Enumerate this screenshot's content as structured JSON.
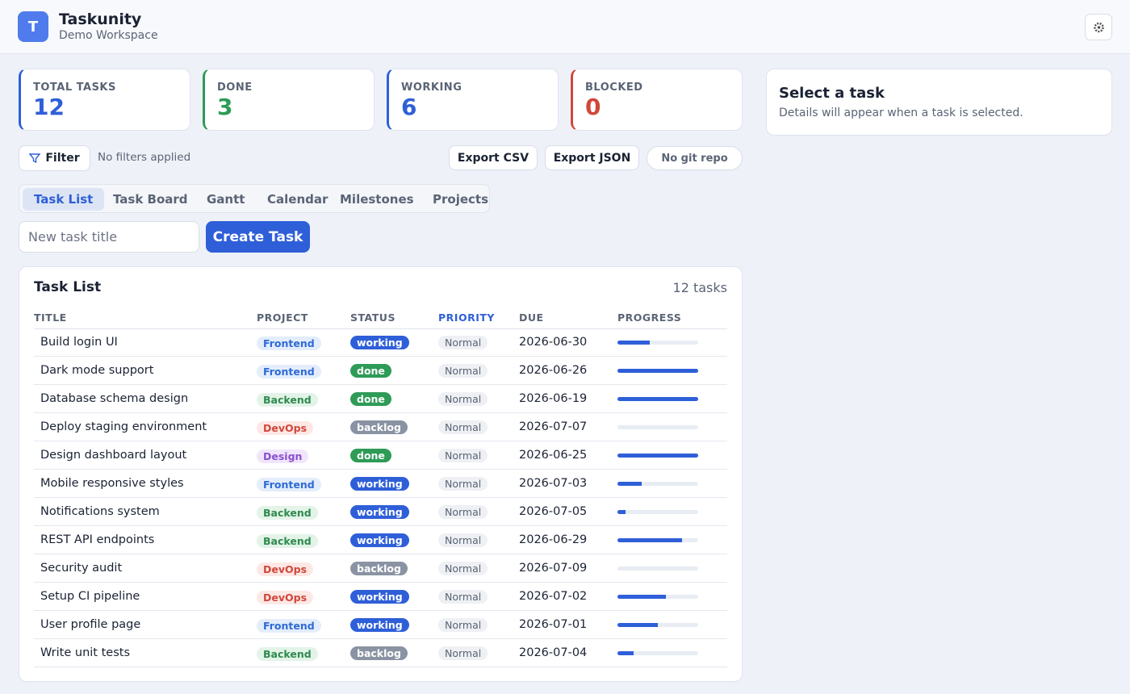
{
  "header": {
    "logo": "T",
    "app_name": "Taskunity",
    "workspace": "Demo Workspace"
  },
  "stats": [
    {
      "label": "TOTAL TASKS",
      "value": "12",
      "color": "#2f5fd8"
    },
    {
      "label": "DONE",
      "value": "3",
      "color": "#2e9b57"
    },
    {
      "label": "WORKING",
      "value": "6",
      "color": "#2f5fd8"
    },
    {
      "label": "BLOCKED",
      "value": "0",
      "color": "#d0483a"
    }
  ],
  "toolbar": {
    "filter": "Filter",
    "filter_status": "No filters applied",
    "export_csv": "Export CSV",
    "export_json": "Export JSON",
    "git": "No git repo"
  },
  "tabs": [
    "Task List",
    "Task Board",
    "Gantt",
    "Calendar",
    "Milestones",
    "Projects"
  ],
  "active_tab": 0,
  "new_task": {
    "placeholder": "New task title",
    "button": "Create Task"
  },
  "details": {
    "title": "Select a task",
    "text": "Details will appear when a task is selected."
  },
  "table": {
    "title": "Task List",
    "count": "12 tasks",
    "sorted_column": 3,
    "columns": [
      "TITLE",
      "PROJECT",
      "STATUS",
      "PRIORITY",
      "DUE",
      "PROGRESS"
    ],
    "project_styles": {
      "Frontend": [
        "#e3edfb",
        "#2f6ad6"
      ],
      "Backend": [
        "#e3f3e8",
        "#2e8b4e"
      ],
      "DevOps": [
        "#fde8e6",
        "#d0483a"
      ],
      "Design": [
        "#f0e6fb",
        "#8b4fd0"
      ]
    },
    "status_colors": {
      "working": "#2f5fd8",
      "done": "#2e9b57",
      "backlog": "#8a93a3"
    },
    "rows": [
      [
        "Build login UI",
        "Frontend",
        "working",
        "Normal",
        "2026-06-30",
        40
      ],
      [
        "Dark mode support",
        "Frontend",
        "done",
        "Normal",
        "2026-06-26",
        100
      ],
      [
        "Database schema design",
        "Backend",
        "done",
        "Normal",
        "2026-06-19",
        100
      ],
      [
        "Deploy staging environment",
        "DevOps",
        "backlog",
        "Normal",
        "2026-07-07",
        0
      ],
      [
        "Design dashboard layout",
        "Design",
        "done",
        "Normal",
        "2026-06-25",
        100
      ],
      [
        "Mobile responsive styles",
        "Frontend",
        "working",
        "Normal",
        "2026-07-03",
        30
      ],
      [
        "Notifications system",
        "Backend",
        "working",
        "Normal",
        "2026-07-05",
        10
      ],
      [
        "REST API endpoints",
        "Backend",
        "working",
        "Normal",
        "2026-06-29",
        80
      ],
      [
        "Security audit",
        "DevOps",
        "backlog",
        "Normal",
        "2026-07-09",
        0
      ],
      [
        "Setup CI pipeline",
        "DevOps",
        "working",
        "Normal",
        "2026-07-02",
        60
      ],
      [
        "User profile page",
        "Frontend",
        "working",
        "Normal",
        "2026-07-01",
        50
      ],
      [
        "Write unit tests",
        "Backend",
        "backlog",
        "Normal",
        "2026-07-04",
        20
      ]
    ]
  }
}
